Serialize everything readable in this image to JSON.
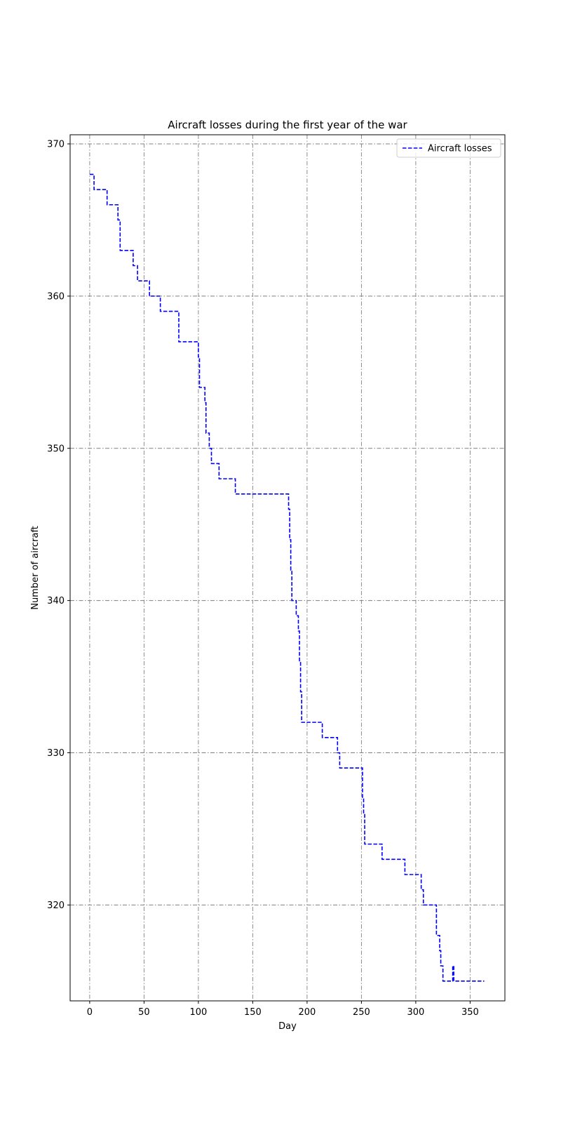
{
  "chart_data": {
    "type": "line",
    "title": "Aircraft losses during the first year of the war",
    "xlabel": "Day",
    "ylabel": "Number of aircraft",
    "xlim": [
      -18,
      382
    ],
    "ylim": [
      313.7,
      370.6
    ],
    "xticks": [
      0,
      50,
      100,
      150,
      200,
      250,
      300,
      350
    ],
    "yticks": [
      320,
      330,
      340,
      350,
      360,
      370
    ],
    "grid": true,
    "grid_style": "dash-dot",
    "grid_color": "#808080",
    "legend_position": "upper-right",
    "step": "post",
    "series": [
      {
        "name": "Aircraft losses",
        "color": "#0000ff",
        "line_style": "dashed",
        "x": [
          0,
          4,
          16,
          23,
          26,
          28,
          39,
          40,
          42,
          44,
          55,
          65,
          82,
          98,
          100,
          101,
          103,
          106,
          107,
          108,
          110,
          112,
          119,
          134,
          182,
          183,
          184,
          185,
          186,
          187,
          188,
          190,
          192,
          193,
          194,
          195,
          196,
          197,
          214,
          228,
          230,
          250,
          251,
          252,
          253,
          269,
          290,
          303,
          305,
          307,
          317,
          319,
          320,
          322,
          323,
          325,
          333,
          334,
          335,
          336,
          363
        ],
        "y": [
          368,
          367,
          366,
          366,
          365,
          363,
          363,
          362,
          362,
          361,
          360,
          359,
          357,
          357,
          356,
          354,
          354,
          353,
          351,
          351,
          350,
          349,
          348,
          347,
          347,
          346,
          344,
          342,
          340,
          340,
          340,
          339,
          338,
          336,
          334,
          332,
          332,
          332,
          331,
          330,
          329,
          329,
          327,
          326,
          324,
          323,
          322,
          322,
          321,
          320,
          320,
          318,
          318,
          317,
          316,
          315,
          315,
          316,
          315,
          315,
          315
        ]
      }
    ]
  }
}
